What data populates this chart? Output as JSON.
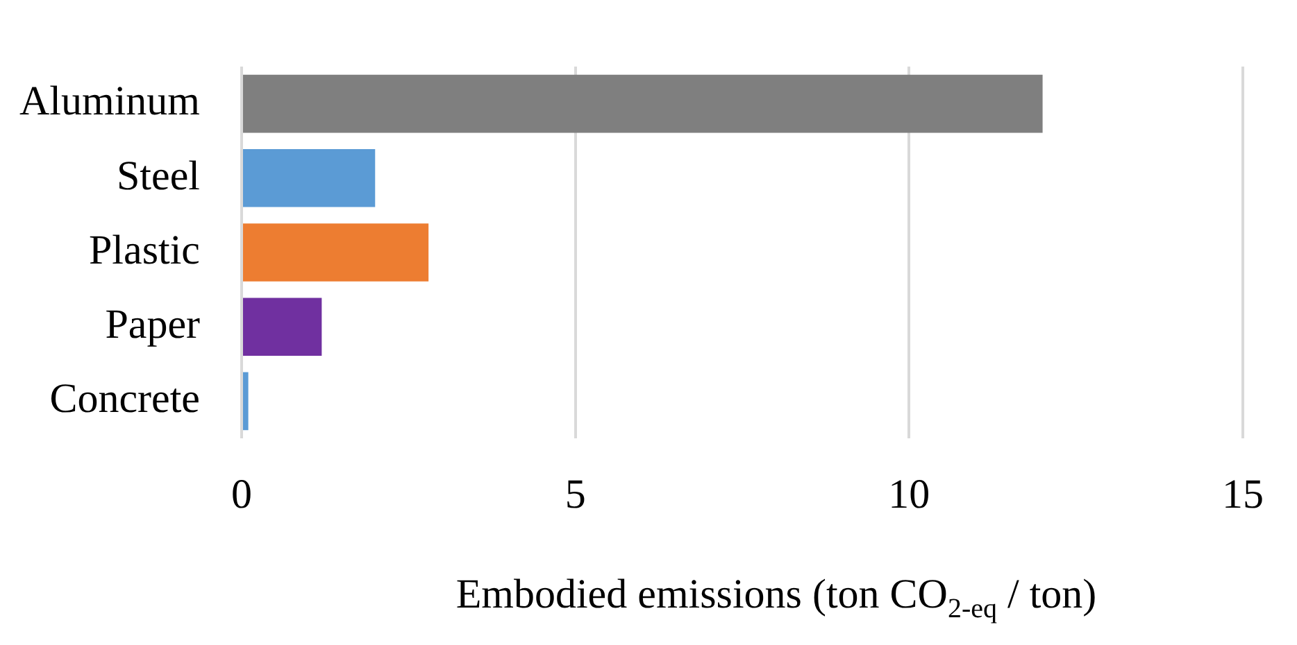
{
  "chart_data": {
    "type": "bar",
    "orientation": "horizontal",
    "categories": [
      "Aluminum",
      "Steel",
      "Plastic",
      "Paper",
      "Concrete"
    ],
    "values": [
      12.0,
      2.0,
      2.8,
      1.2,
      0.1
    ],
    "colors": [
      "#7f7f7f",
      "#5b9bd5",
      "#ed7d31",
      "#7030a0",
      "#5b9bd5"
    ],
    "xlabel": "Embodied emissions (ton CO$_{2-eq}$ / ton)",
    "xlim": [
      0,
      15
    ],
    "xticks": [
      0,
      5,
      10,
      15
    ],
    "grid": "x",
    "legend": false
  }
}
